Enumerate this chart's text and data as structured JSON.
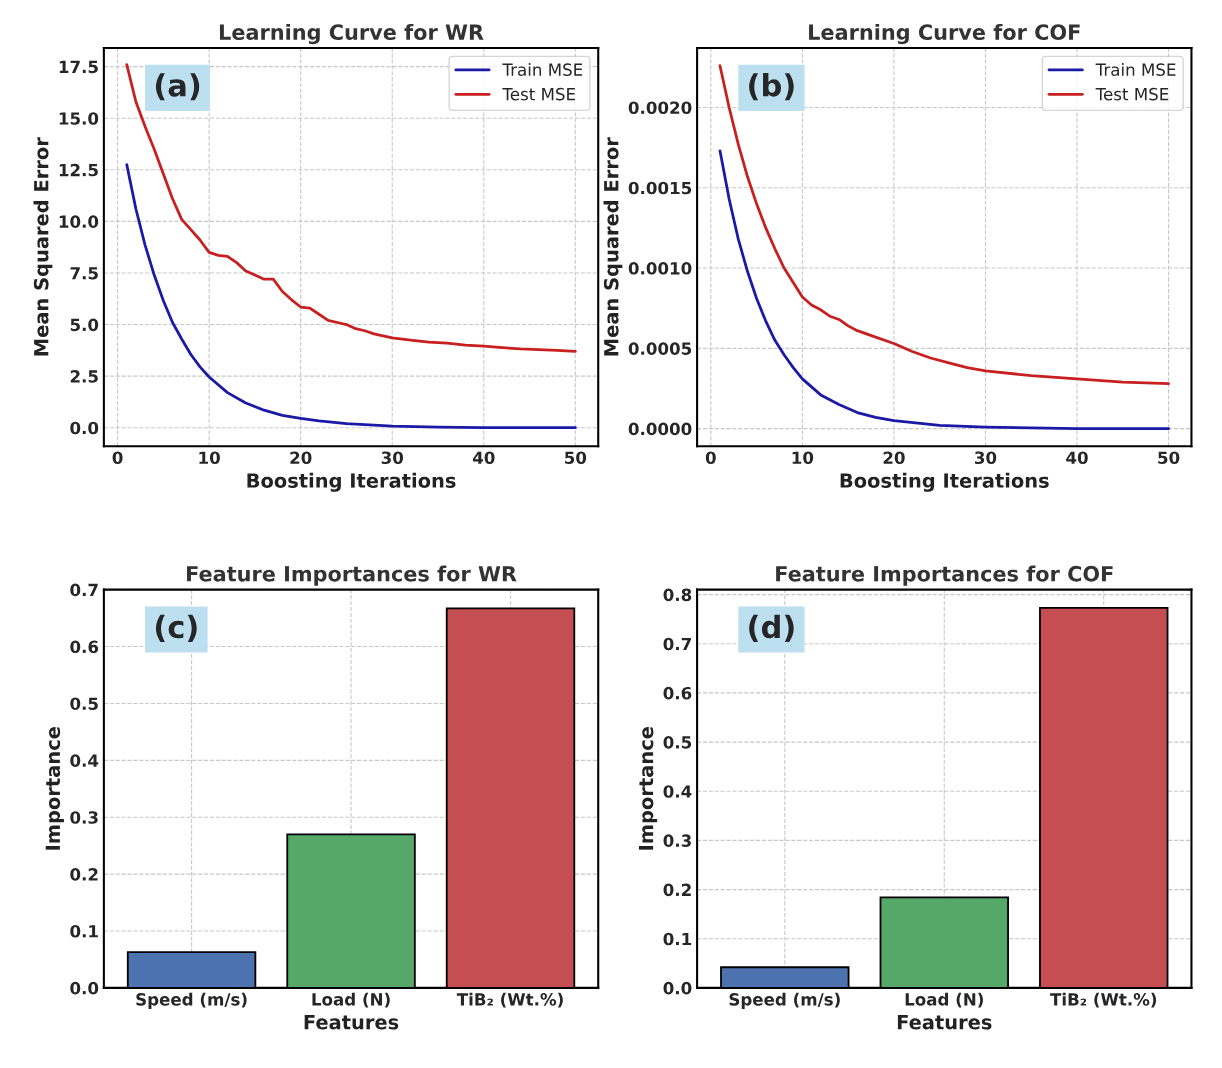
{
  "chart_data": [
    {
      "type": "line",
      "title": "Learning Curve for WR",
      "xlabel": "Boosting Iterations",
      "ylabel": "Mean Squared Error",
      "annotations": [
        "(a)"
      ],
      "xlim": [
        -1.5,
        52.5
      ],
      "xticks": [
        0,
        10,
        20,
        30,
        40,
        50
      ],
      "ylim": [
        -0.9,
        18.4
      ],
      "yticks": [
        {
          "value": 0,
          "label": "0.0"
        },
        2.5,
        {
          "value": 5,
          "label": "5.0"
        },
        7.5,
        {
          "value": 10,
          "label": "10.0"
        },
        12.5,
        {
          "value": 15,
          "label": "15.0"
        },
        17.5
      ],
      "grid": true,
      "legend": "top right",
      "line_style": "solid",
      "series": [
        {
          "name": "Train MSE",
          "color": "#1a1aa6",
          "x": [
            1,
            2,
            3,
            4,
            5,
            6,
            7,
            8,
            9,
            10,
            12,
            14,
            16,
            18,
            20,
            22,
            25,
            30,
            35,
            40,
            45,
            50
          ],
          "values": [
            12.75,
            10.6,
            8.85,
            7.4,
            6.15,
            5.1,
            4.3,
            3.55,
            2.95,
            2.46,
            1.7,
            1.2,
            0.85,
            0.6,
            0.45,
            0.33,
            0.2,
            0.08,
            0.03,
            0.01,
            0.0,
            0.0
          ]
        },
        {
          "name": "Test MSE",
          "color": "#c82020",
          "x": [
            1,
            2,
            3,
            4,
            5,
            6,
            7,
            8,
            9,
            10,
            11,
            12,
            13,
            14,
            15,
            16,
            17,
            18,
            19,
            20,
            21,
            22,
            23,
            24,
            25,
            26,
            27,
            28,
            29,
            30,
            32,
            34,
            36,
            38,
            40,
            42,
            44,
            46,
            48,
            50
          ],
          "values": [
            17.6,
            15.8,
            14.6,
            13.5,
            12.3,
            11.1,
            10.1,
            9.6,
            9.1,
            8.5,
            8.35,
            8.3,
            8.0,
            7.6,
            7.4,
            7.2,
            7.2,
            6.6,
            6.2,
            5.85,
            5.8,
            5.5,
            5.2,
            5.1,
            5.0,
            4.8,
            4.7,
            4.55,
            4.45,
            4.35,
            4.25,
            4.15,
            4.1,
            4.0,
            3.95,
            3.88,
            3.82,
            3.78,
            3.75,
            3.7
          ]
        }
      ]
    },
    {
      "type": "line",
      "title": "Learning Curve for COF",
      "xlabel": "Boosting Iterations",
      "ylabel": "Mean Squared Error",
      "annotations": [
        "(b)"
      ],
      "xlim": [
        -1.5,
        52.5
      ],
      "xticks": [
        0,
        10,
        20,
        30,
        40,
        50
      ],
      "ylim": [
        -0.00011,
        0.00237
      ],
      "yticks": [
        {
          "value": 0,
          "label": "0.0000"
        },
        {
          "value": 0.0005,
          "label": "0.0005"
        },
        {
          "value": 0.001,
          "label": "0.0010"
        },
        {
          "value": 0.0015,
          "label": "0.0015"
        },
        {
          "value": 0.002,
          "label": "0.0020"
        }
      ],
      "grid": true,
      "legend": "top right",
      "line_style": "solid",
      "series": [
        {
          "name": "Train MSE",
          "color": "#1a1aa6",
          "x": [
            1,
            2,
            3,
            4,
            5,
            6,
            7,
            8,
            9,
            10,
            12,
            14,
            16,
            18,
            20,
            25,
            30,
            40,
            50
          ],
          "values": [
            0.00173,
            0.00143,
            0.00118,
            0.00098,
            0.00081,
            0.00067,
            0.00055,
            0.00046,
            0.00038,
            0.00031,
            0.00021,
            0.00015,
            0.0001,
            7e-05,
            5e-05,
            2e-05,
            1e-05,
            0.0,
            0.0
          ]
        },
        {
          "name": "Test MSE",
          "color": "#c82020",
          "x": [
            1,
            2,
            3,
            4,
            5,
            6,
            7,
            8,
            9,
            10,
            11,
            12,
            13,
            14,
            15,
            16,
            18,
            20,
            22,
            24,
            26,
            28,
            30,
            35,
            40,
            45,
            50
          ],
          "values": [
            0.00226,
            0.002,
            0.00177,
            0.00157,
            0.0014,
            0.00125,
            0.00112,
            0.001,
            0.00091,
            0.00082,
            0.00077,
            0.00074,
            0.0007,
            0.00068,
            0.00064,
            0.00061,
            0.00057,
            0.00053,
            0.00048,
            0.00044,
            0.00041,
            0.00038,
            0.00036,
            0.00033,
            0.00031,
            0.00029,
            0.00028
          ]
        }
      ]
    },
    {
      "type": "bar",
      "title": "Feature Importances for WR",
      "xlabel": "Features",
      "ylabel": "Importance",
      "annotations": [
        "(c)"
      ],
      "categories": [
        "Speed (m/s)",
        "Load (N)",
        "TiB₂ (Wt.%)"
      ],
      "values": [
        0.063,
        0.27,
        0.667
      ],
      "colors": [
        "#4c72b0",
        "#55a868",
        "#c44e52"
      ],
      "ylim": [
        0,
        0.7
      ],
      "yticks": [
        {
          "value": 0,
          "label": "0.0"
        },
        0.1,
        0.2,
        0.3,
        0.4,
        0.5,
        0.6,
        0.7
      ],
      "grid": true
    },
    {
      "type": "bar",
      "title": "Feature Importances for COF",
      "xlabel": "Features",
      "ylabel": "Importance",
      "annotations": [
        "(d)"
      ],
      "categories": [
        "Speed (m/s)",
        "Load (N)",
        "TiB₂ (Wt.%)"
      ],
      "values": [
        0.042,
        0.184,
        0.773
      ],
      "colors": [
        "#4c72b0",
        "#55a868",
        "#c44e52"
      ],
      "ylim": [
        0,
        0.81
      ],
      "yticks": [
        {
          "value": 0,
          "label": "0.0"
        },
        0.1,
        0.2,
        0.3,
        0.4,
        0.5,
        0.6,
        0.7,
        0.8
      ],
      "grid": true
    }
  ]
}
